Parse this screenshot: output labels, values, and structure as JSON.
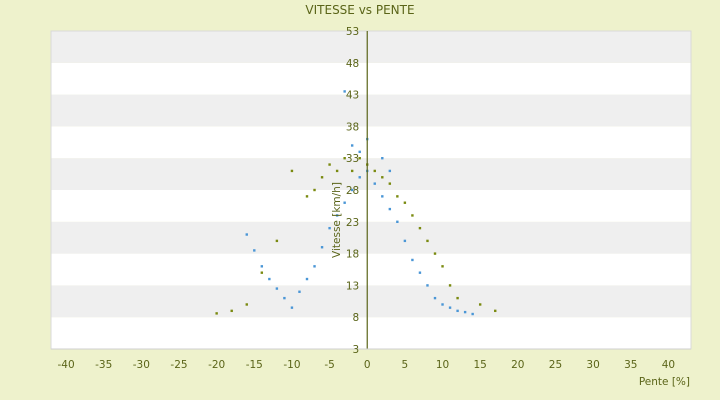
{
  "chart_data": {
    "type": "scatter",
    "title": "VITESSE vs PENTE",
    "xlabel": "Pente [%]",
    "ylabel": "Vitesse [km/h]",
    "xlim": [
      -42,
      43
    ],
    "ylim": [
      3,
      53
    ],
    "x_ticks": [
      -40,
      -35,
      -30,
      -25,
      -20,
      -15,
      -10,
      -5,
      0,
      5,
      10,
      15,
      20,
      25,
      30,
      35,
      40
    ],
    "y_ticks": [
      3,
      8,
      13,
      18,
      23,
      28,
      33,
      38,
      43,
      48,
      53
    ],
    "grid": "horizontal-bands",
    "legend": "none",
    "series": [
      {
        "color": "#4a96d6",
        "points": [
          [
            -16,
            21
          ],
          [
            -15,
            18.5
          ],
          [
            -14,
            16
          ],
          [
            -13,
            14
          ],
          [
            -12,
            12.5
          ],
          [
            -11,
            11
          ],
          [
            -10,
            9.5
          ],
          [
            -9,
            12
          ],
          [
            -8,
            14
          ],
          [
            -7,
            16
          ],
          [
            -6,
            19
          ],
          [
            -5,
            22
          ],
          [
            -4,
            24
          ],
          [
            -3,
            26
          ],
          [
            -2,
            28
          ],
          [
            -1,
            30
          ],
          [
            0,
            31
          ],
          [
            1,
            29
          ],
          [
            2,
            27
          ],
          [
            3,
            25
          ],
          [
            4,
            23
          ],
          [
            5,
            20
          ],
          [
            6,
            17
          ],
          [
            7,
            15
          ],
          [
            8,
            13
          ],
          [
            9,
            11
          ],
          [
            10,
            10
          ],
          [
            11,
            9.5
          ],
          [
            12,
            9
          ],
          [
            13,
            8.8
          ],
          [
            14,
            8.5
          ],
          [
            -3,
            43.5
          ],
          [
            0,
            36
          ],
          [
            -1,
            34
          ],
          [
            2,
            33
          ],
          [
            -2,
            35
          ],
          [
            3,
            31
          ]
        ]
      },
      {
        "color": "#7a8a10",
        "points": [
          [
            -10,
            31
          ],
          [
            -8,
            27
          ],
          [
            -7,
            28
          ],
          [
            -6,
            30
          ],
          [
            -5,
            32
          ],
          [
            -4,
            31
          ],
          [
            -3,
            33
          ],
          [
            -2,
            31
          ],
          [
            -1,
            33
          ],
          [
            0,
            32
          ],
          [
            1,
            31
          ],
          [
            2,
            30
          ],
          [
            3,
            29
          ],
          [
            4,
            27
          ],
          [
            5,
            26
          ],
          [
            6,
            24
          ],
          [
            7,
            22
          ],
          [
            8,
            20
          ],
          [
            9,
            18
          ],
          [
            10,
            16
          ],
          [
            11,
            13
          ],
          [
            12,
            11
          ],
          [
            -12,
            20
          ],
          [
            -14,
            15
          ],
          [
            -16,
            10
          ],
          [
            -18,
            9
          ],
          [
            -20,
            8.6
          ],
          [
            15,
            10
          ],
          [
            17,
            9
          ]
        ]
      }
    ]
  }
}
